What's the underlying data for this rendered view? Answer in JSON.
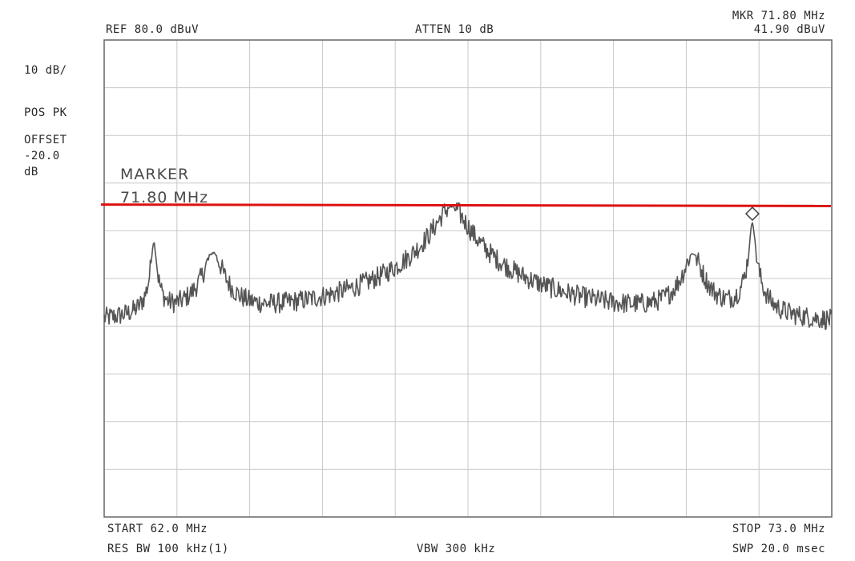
{
  "header": {
    "ref": "REF  80.0 dBuV",
    "atten": "ATTEN 10 dB",
    "mkr_freq": "MKR 71.80 MHz",
    "mkr_level": "41.90 dBuV"
  },
  "side": {
    "scale": "10 dB/",
    "detector": "POS PK",
    "offset_label": "OFFSET",
    "offset_value": "-20.0",
    "offset_unit": "dB"
  },
  "marker_annotation": {
    "title": "MARKER",
    "freq": "71.80 MHz"
  },
  "footer": {
    "start": "START 62.0 MHz",
    "res_bw": "RES BW 100 kHz(1)",
    "vbw": "VBW 300 kHz",
    "stop": "STOP 73.0 MHz",
    "sweep": "SWP 20.0 msec"
  },
  "colors": {
    "trace": "#555555",
    "grid": "#c8c8c8",
    "frame": "#666666",
    "limit_line": "#dd1111"
  },
  "chart_data": {
    "type": "line",
    "xlabel": "",
    "ylabel": "",
    "xlim": [
      62.0,
      73.0
    ],
    "ylim": [
      -20.0,
      80.0
    ],
    "y_unit": "dBuV",
    "x_unit": "MHz",
    "grid": true,
    "noise_floor_dbuv": 19,
    "limit_line": {
      "y_left": 45.5,
      "y_right": 45.2
    },
    "peaks": [
      {
        "freq_mhz": 62.75,
        "level_dbuv": 37.5,
        "width_mhz": 0.06
      },
      {
        "freq_mhz": 63.65,
        "level_dbuv": 35.2,
        "width_mhz": 0.22
      },
      {
        "freq_mhz": 67.25,
        "level_dbuv": 45.0,
        "width_mhz": 0.4
      },
      {
        "freq_mhz": 70.9,
        "level_dbuv": 35.0,
        "width_mhz": 0.22
      },
      {
        "freq_mhz": 71.8,
        "level_dbuv": 41.9,
        "width_mhz": 0.06
      }
    ],
    "marker": {
      "freq_mhz": 71.8,
      "level_dbuv": 41.9,
      "symbol": "diamond"
    }
  }
}
